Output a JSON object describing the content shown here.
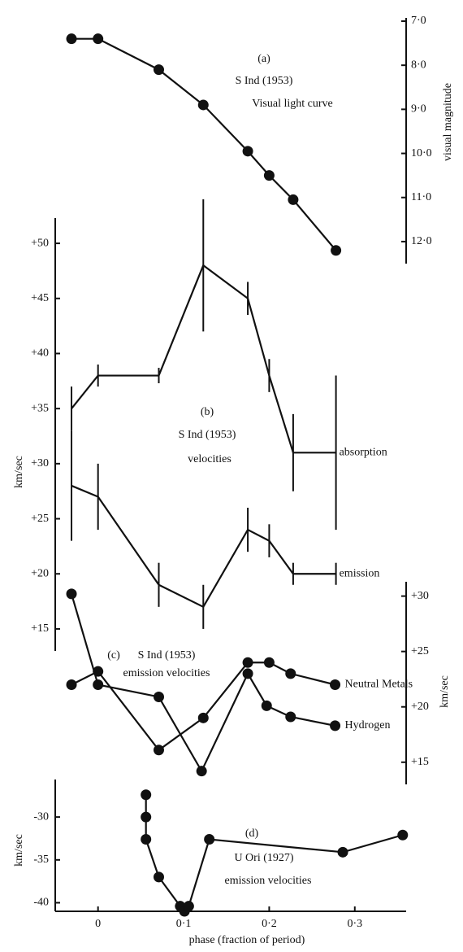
{
  "chart_data": [
    {
      "type": "line",
      "label": "(a)",
      "title": "S Ind (1953)",
      "subtitle": "Visual light curve",
      "ylabel": "visual magnitude",
      "y_axis": "right",
      "inverted": true,
      "markers": true,
      "ylim": [
        7,
        12.5
      ],
      "yticks": [
        {
          "value": 7,
          "label": "7·0"
        },
        {
          "value": 8,
          "label": "8·0"
        },
        {
          "value": 9,
          "label": "9·0"
        },
        {
          "value": 10,
          "label": "10·0"
        },
        {
          "value": 11,
          "label": "11·0"
        },
        {
          "value": 12,
          "label": "12·0"
        }
      ],
      "series": [
        {
          "color": "#111111",
          "x": [
            -0.031,
            0,
            0.071,
            0.123,
            0.175,
            0.2,
            0.228,
            0.278
          ],
          "values": [
            7.4,
            7.4,
            8.1,
            8.9,
            9.95,
            10.5,
            11.05,
            12.2
          ]
        }
      ]
    },
    {
      "type": "line",
      "label": "(b)",
      "title": "S Ind (1953)",
      "subtitle": "velocities",
      "ylabel": "km/sec",
      "y_axis": "left",
      "inverted": false,
      "markers": false,
      "ylim": [
        13,
        52
      ],
      "yticks": [
        {
          "value": 15,
          "label": "+15"
        },
        {
          "value": 20,
          "label": "+20"
        },
        {
          "value": 25,
          "label": "+25"
        },
        {
          "value": 30,
          "label": "+30"
        },
        {
          "value": 35,
          "label": "+35"
        },
        {
          "value": 40,
          "label": "+40"
        },
        {
          "value": 45,
          "label": "+45"
        },
        {
          "value": 50,
          "label": "+50"
        }
      ],
      "series": [
        {
          "name": "absorption",
          "color": "#111111",
          "x": [
            -0.031,
            0,
            0.071,
            0.123,
            0.175,
            0.2,
            0.228,
            0.278
          ],
          "values": [
            35,
            38,
            38,
            48,
            45,
            38,
            31,
            31
          ],
          "errors": [
            2,
            1,
            0.7,
            6,
            1.5,
            1.5,
            3.5,
            7
          ]
        },
        {
          "name": "emission",
          "color": "#111111",
          "x": [
            -0.031,
            0,
            0.071,
            0.123,
            0.175,
            0.2,
            0.228,
            0.278
          ],
          "values": [
            28,
            27,
            19,
            17,
            24,
            23,
            20,
            20
          ],
          "errors": [
            5,
            3,
            2,
            2,
            2,
            1.5,
            1,
            1
          ]
        }
      ]
    },
    {
      "type": "line",
      "label": "(c)",
      "title": "S Ind (1953)",
      "subtitle": "emission velocities",
      "ylabel": "km/sec",
      "y_axis": "right",
      "inverted": false,
      "markers": true,
      "ylim": [
        13,
        31
      ],
      "yticks": [
        {
          "value": 15,
          "label": "+15"
        },
        {
          "value": 20,
          "label": "+20"
        },
        {
          "value": 25,
          "label": "+25"
        },
        {
          "value": 30,
          "label": "+30"
        }
      ],
      "series": [
        {
          "name": "Neutral Metals",
          "color": "#111111",
          "x": [
            -0.031,
            0,
            0.071,
            0.123,
            0.175,
            0.2,
            0.225,
            0.277
          ],
          "values": [
            22.0,
            23.2,
            16.1,
            19.0,
            24.0,
            24.0,
            23.0,
            22.0
          ]
        },
        {
          "name": "Hydrogen",
          "color": "#111111",
          "x": [
            -0.031,
            0,
            0.071,
            0.121,
            0.175,
            0.197,
            0.225,
            0.277
          ],
          "values": [
            30.2,
            22.0,
            20.9,
            14.2,
            23.0,
            20.1,
            19.1,
            18.3
          ]
        }
      ]
    },
    {
      "type": "line",
      "label": "(d)",
      "title": "U Ori (1927)",
      "subtitle": "emission velocities",
      "ylabel": "km/sec",
      "y_axis": "left",
      "inverted": false,
      "markers": true,
      "ylim": [
        -41,
        -26
      ],
      "yticks": [
        -40,
        -35,
        -30
      ],
      "xlim": [
        -0.05,
        0.36
      ],
      "xticks": [
        0,
        {
          "value": 0.1,
          "label": "0·1"
        },
        {
          "value": 0.2,
          "label": "0·2"
        },
        {
          "value": 0.3,
          "label": "0·3"
        }
      ],
      "xlabel": "phase (fraction of period)",
      "series": [
        {
          "color": "#111111",
          "x": [
            0.056,
            0.056,
            0.056,
            0.071,
            0.096,
            0.101,
            0.106,
            0.13,
            0.286,
            0.356
          ],
          "values": [
            -27.4,
            -30,
            -32.6,
            -37,
            -40.4,
            -41,
            -40.4,
            -32.6,
            -34.1,
            -32.1
          ]
        }
      ]
    }
  ]
}
